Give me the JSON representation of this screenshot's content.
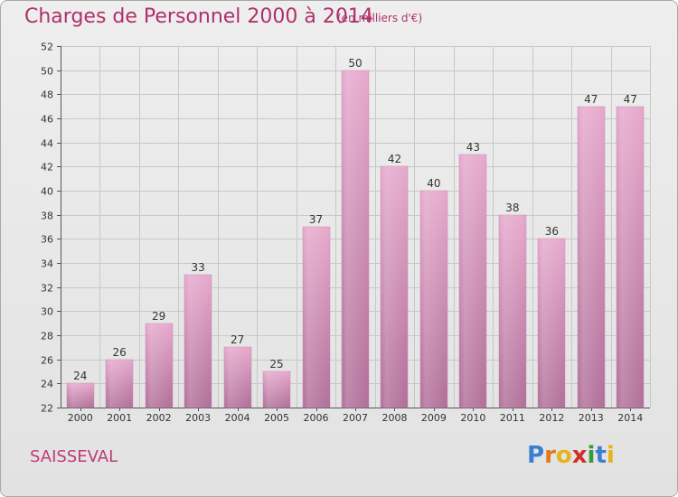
{
  "header": {
    "title": "Charges de Personnel 2000 à 2014",
    "subtitle": "(en milliers d'€)"
  },
  "footer": {
    "commune": "SAISSEVAL",
    "logo_text": "Proxiti",
    "logo_letters": [
      {
        "char": "P",
        "color": "#3a7fd0"
      },
      {
        "char": "r",
        "color": "#e07a1a"
      },
      {
        "char": "o",
        "color": "#e8b21a"
      },
      {
        "char": "x",
        "color": "#d0302a"
      },
      {
        "char": "i",
        "color": "#3a9a3a"
      },
      {
        "char": "t",
        "color": "#3a7fd0"
      },
      {
        "char": "i",
        "color": "#e8b21a"
      }
    ]
  },
  "colors": {
    "bar_top": "#e6a8cc",
    "bar_bottom": "#b06e98",
    "bar_edge": "#c98ab2",
    "grid": "#c8c8c8",
    "axis_text": "#333333",
    "title": "#b0306a"
  },
  "chart_data": {
    "type": "bar",
    "title": "Charges de Personnel 2000 à 2014",
    "subtitle": "(en milliers d'€)",
    "xlabel": "",
    "ylabel": "",
    "categories": [
      "2000",
      "2001",
      "2002",
      "2003",
      "2004",
      "2005",
      "2006",
      "2007",
      "2008",
      "2009",
      "2010",
      "2011",
      "2012",
      "2013",
      "2014"
    ],
    "values": [
      24,
      26,
      29,
      33,
      27,
      25,
      37,
      50,
      42,
      40,
      43,
      38,
      36,
      47,
      47
    ],
    "ylim": [
      22,
      52
    ],
    "yticks": [
      22,
      24,
      26,
      28,
      30,
      32,
      34,
      36,
      38,
      40,
      42,
      44,
      46,
      48,
      50,
      52
    ],
    "grid": true,
    "legend": "none"
  }
}
